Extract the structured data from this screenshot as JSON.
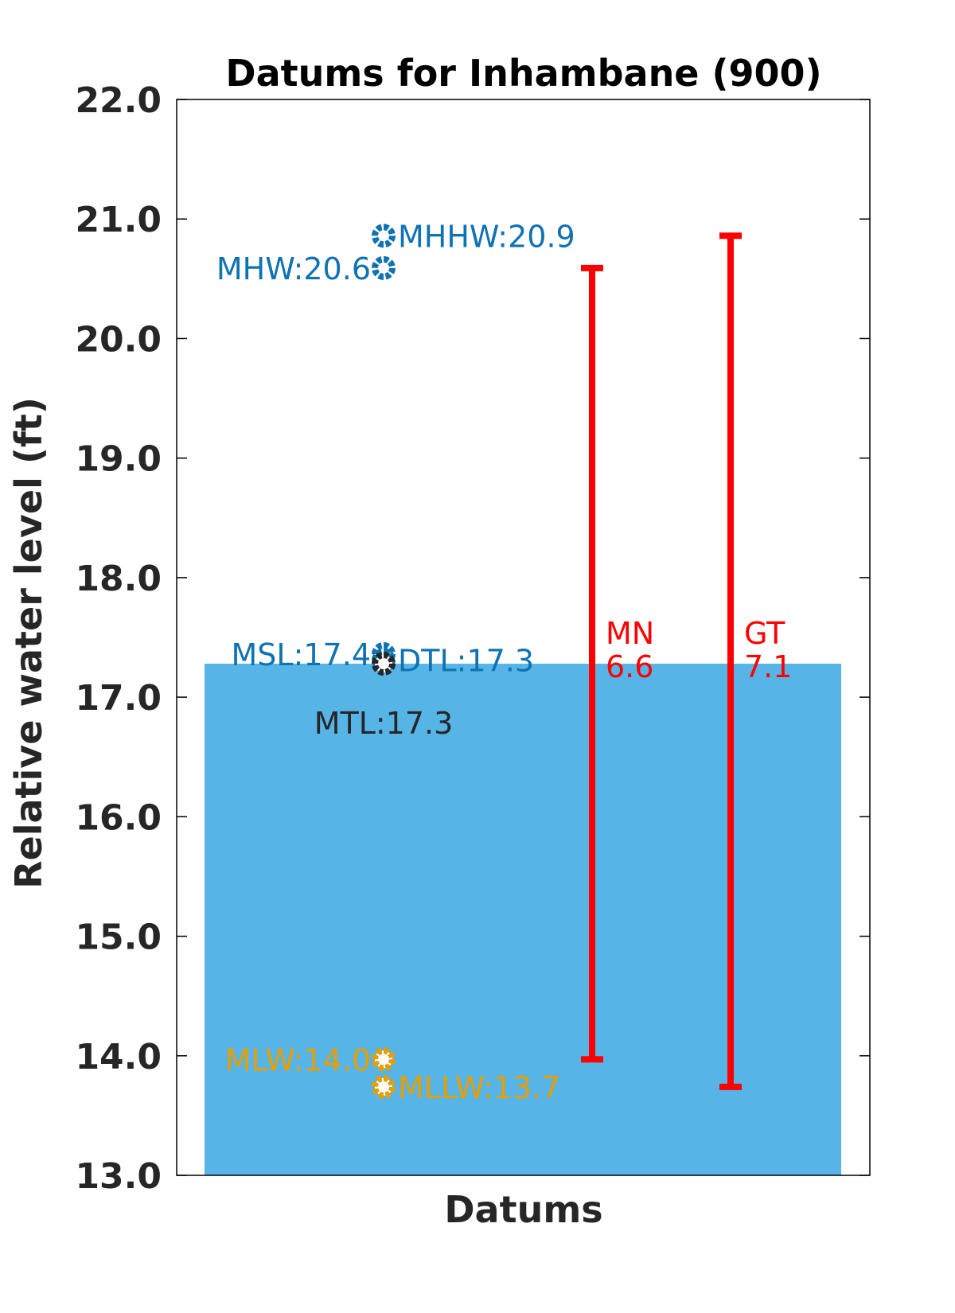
{
  "chart_data": {
    "type": "scatter",
    "title": "Datums for Inhambane (900)",
    "xlabel": "Datums",
    "ylabel": "Relative water level (ft)",
    "ylim": [
      13.0,
      22.0
    ],
    "yticks": [
      "13.0",
      "14.0",
      "15.0",
      "16.0",
      "17.0",
      "18.0",
      "19.0",
      "20.0",
      "21.0",
      "22.0"
    ],
    "grid": false,
    "background_bar": {
      "top": 17.28,
      "bottom": 13.0,
      "color": "#56b4e6"
    },
    "datums": [
      {
        "name": "MHHW",
        "value": 20.86,
        "label": "MHHW:20.9",
        "color": "#0f72b2",
        "side": "right"
      },
      {
        "name": "MHW",
        "value": 20.59,
        "label": "MHW:20.6",
        "color": "#0f72b2",
        "side": "left"
      },
      {
        "name": "MSL",
        "value": 17.36,
        "label": "MSL:17.4",
        "color": "#0f72b2",
        "side": "left"
      },
      {
        "name": "DTL",
        "value": 17.31,
        "label": "DTL:17.3",
        "color": "#0f72b2",
        "side": "right"
      },
      {
        "name": "MTL",
        "value": 17.28,
        "label": "MTL:17.3",
        "color": "#262626",
        "side": "below"
      },
      {
        "name": "MLW",
        "value": 13.97,
        "label": "MLW:14.0",
        "color": "#e69e00",
        "side": "left"
      },
      {
        "name": "MLLW",
        "value": 13.74,
        "label": "MLLW:13.7",
        "color": "#e69e00",
        "side": "right"
      }
    ],
    "ranges": [
      {
        "name": "MN",
        "low": 13.97,
        "high": 20.59,
        "label_name": "MN",
        "label_value": "6.6",
        "color": "#ff0000"
      },
      {
        "name": "GT",
        "low": 13.74,
        "high": 20.86,
        "label_name": "GT",
        "label_value": "7.1",
        "color": "#ff0000"
      }
    ]
  }
}
